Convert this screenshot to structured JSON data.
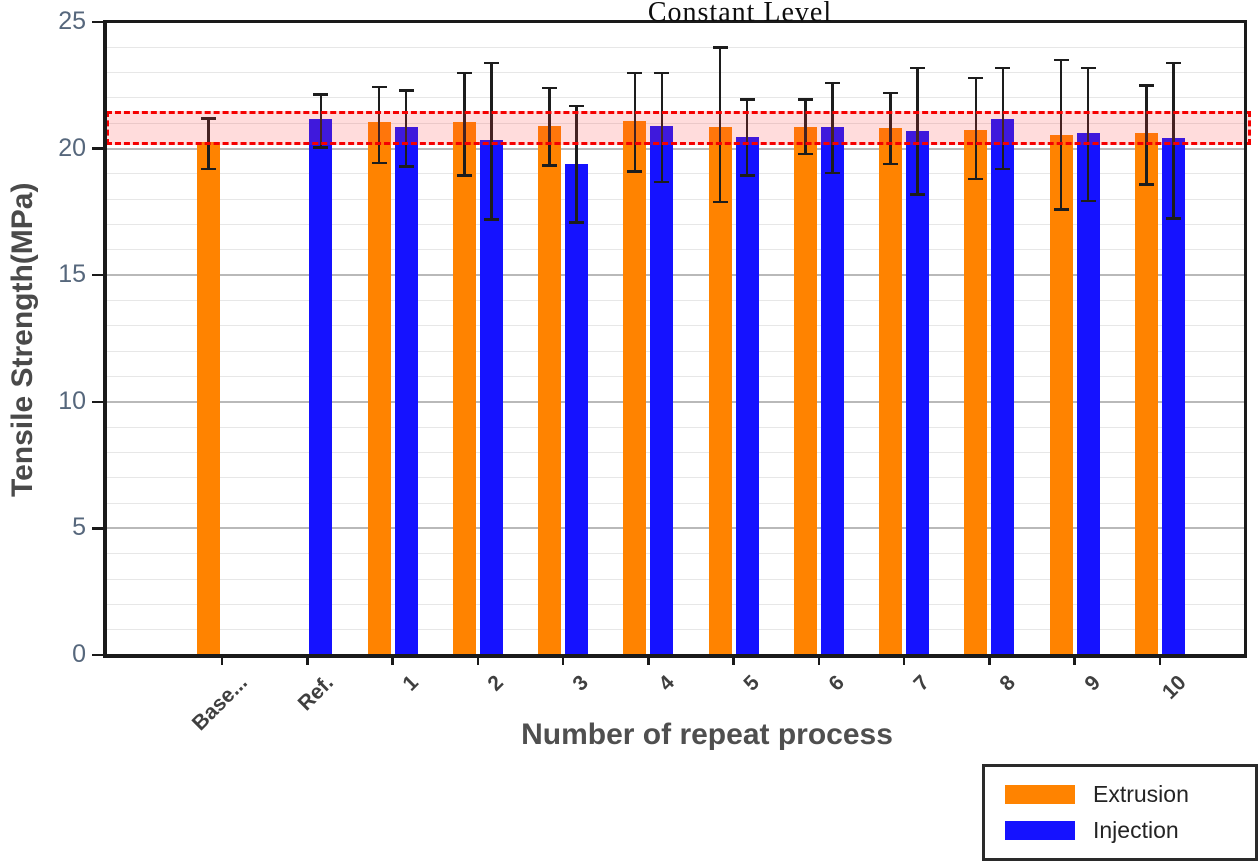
{
  "figure": {
    "title": "Constant Level",
    "x_axis_label": "Number of repeat process",
    "y_axis_label": "Tensile Strength(MPa)"
  },
  "chart_data": {
    "type": "bar",
    "title": "Constant Level",
    "xlabel": "Number of repeat process",
    "ylabel": "Tensile Strength(MPa)",
    "ylim": [
      0,
      25
    ],
    "y_major_ticks": [
      0,
      5,
      10,
      15,
      20,
      25
    ],
    "minor_grid_step": 1,
    "grid": true,
    "legend_position": "outside-bottom-right",
    "categories": [
      "Base...",
      "Ref.",
      "1",
      "2",
      "3",
      "4",
      "5",
      "6",
      "7",
      "8",
      "9",
      "10"
    ],
    "series": [
      {
        "name": "Extrusion",
        "color": "#FF8300",
        "values": [
          20.25,
          null,
          21.05,
          21.05,
          20.9,
          21.1,
          20.85,
          20.85,
          20.8,
          20.75,
          20.55,
          20.6
        ],
        "error_low": [
          19.2,
          null,
          19.45,
          18.95,
          19.35,
          19.1,
          17.9,
          19.8,
          19.4,
          18.8,
          17.6,
          18.6
        ],
        "error_high": [
          21.2,
          null,
          22.45,
          23.0,
          22.4,
          23.0,
          24.0,
          21.95,
          22.2,
          22.8,
          23.5,
          22.5
        ]
      },
      {
        "name": "Injection",
        "color": "#1512FF",
        "values": [
          null,
          21.15,
          20.85,
          20.35,
          19.4,
          20.9,
          20.45,
          20.85,
          20.7,
          21.15,
          20.6,
          20.4
        ],
        "error_low": [
          null,
          20.05,
          19.3,
          17.2,
          17.1,
          18.7,
          18.95,
          19.05,
          18.2,
          19.2,
          17.95,
          17.25
        ],
        "error_high": [
          null,
          22.15,
          22.3,
          23.4,
          21.7,
          23.0,
          21.95,
          22.6,
          23.2,
          23.2,
          23.2,
          23.4
        ]
      }
    ],
    "reference_band": {
      "from": 20.15,
      "to": 21.5,
      "line_color": "#F50000",
      "fill_color": "rgba(255,60,60,0.18)",
      "style": "dashed"
    }
  },
  "colors": {
    "extrusion": "#FF8300",
    "injection": "#1512FF",
    "band_line": "#F50000",
    "axis": "#1A1A1A",
    "grid_minor": "#E7E7E7",
    "grid_major": "#B9B9B9",
    "ytick_text": "#56677C",
    "xtick_text": "#3F3F3F",
    "axis_label_text": "#4A4A4A"
  },
  "legend": {
    "items": [
      {
        "label": "Extrusion"
      },
      {
        "label": "Injection"
      }
    ]
  }
}
